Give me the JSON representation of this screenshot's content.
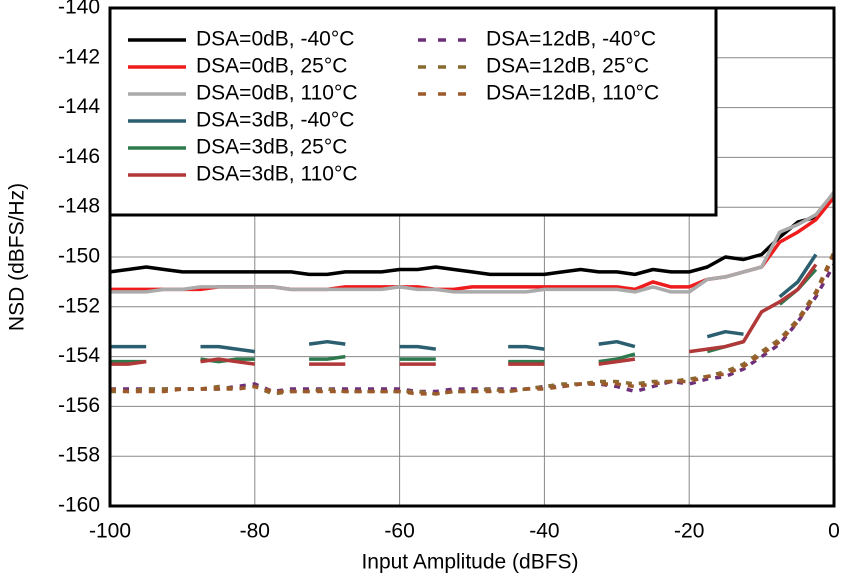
{
  "chart_data": {
    "type": "line",
    "x_label": "Input Amplitude (dBFS)",
    "y_label": "NSD (dBFS/Hz)",
    "x": [
      -100,
      -97.5,
      -95,
      -92.5,
      -90,
      -87.5,
      -85,
      -82.5,
      -80,
      -77.5,
      -75,
      -72.5,
      -70,
      -67.5,
      -65,
      -62.5,
      -60,
      -57.5,
      -55,
      -52.5,
      -50,
      -47.5,
      -45,
      -42.5,
      -40,
      -37.5,
      -35,
      -32.5,
      -30,
      -27.5,
      -25,
      -22.5,
      -20,
      -17.5,
      -15,
      -12.5,
      -10,
      -7.5,
      -5,
      -2.5,
      0
    ],
    "xlim": [
      -100,
      0
    ],
    "xticks": [
      -100,
      -80,
      -60,
      -40,
      -20,
      0
    ],
    "ylim": [
      -160,
      -140
    ],
    "yticks": [
      -160,
      -158,
      -156,
      -154,
      -152,
      -150,
      -148,
      -146,
      -144,
      -142,
      -140
    ],
    "grid": true,
    "legend": "upper left",
    "series": [
      {
        "name": "DSA=0dB, -40°C",
        "color": "#000000",
        "style": "solid",
        "values": [
          -150.6,
          -150.5,
          -150.4,
          -150.5,
          -150.6,
          -150.6,
          -150.6,
          -150.6,
          -150.6,
          -150.6,
          -150.6,
          -150.7,
          -150.7,
          -150.6,
          -150.6,
          -150.6,
          -150.5,
          -150.5,
          -150.4,
          -150.5,
          -150.6,
          -150.7,
          -150.7,
          -150.7,
          -150.7,
          -150.6,
          -150.5,
          -150.6,
          -150.6,
          -150.7,
          -150.5,
          -150.6,
          -150.6,
          -150.4,
          -150.0,
          -150.1,
          -149.9,
          -149.2,
          -148.6,
          -148.4,
          -147.4
        ]
      },
      {
        "name": "DSA=0dB, 25°C",
        "color": "#ee1c1c",
        "style": "solid",
        "values": [
          -151.3,
          -151.3,
          -151.3,
          -151.3,
          -151.3,
          -151.3,
          -151.2,
          -151.2,
          -151.2,
          -151.2,
          -151.3,
          -151.3,
          -151.3,
          -151.2,
          -151.2,
          -151.2,
          -151.2,
          -151.2,
          -151.3,
          -151.3,
          -151.2,
          -151.2,
          -151.2,
          -151.2,
          -151.2,
          -151.2,
          -151.2,
          -151.2,
          -151.2,
          -151.3,
          -151.0,
          -151.2,
          -151.2,
          -150.9,
          -150.8,
          -150.6,
          -150.4,
          -149.4,
          -149.0,
          -148.5,
          -147.6
        ]
      },
      {
        "name": "DSA=0dB, 110°C",
        "color": "#aaaaaa",
        "style": "solid",
        "values": [
          -151.4,
          -151.4,
          -151.4,
          -151.3,
          -151.3,
          -151.2,
          -151.2,
          -151.2,
          -151.2,
          -151.2,
          -151.3,
          -151.3,
          -151.3,
          -151.3,
          -151.3,
          -151.3,
          -151.2,
          -151.3,
          -151.3,
          -151.4,
          -151.4,
          -151.4,
          -151.4,
          -151.4,
          -151.3,
          -151.3,
          -151.3,
          -151.3,
          -151.3,
          -151.4,
          -151.2,
          -151.4,
          -151.4,
          -150.9,
          -150.8,
          -150.6,
          -150.4,
          -149.0,
          -148.7,
          -148.3,
          -147.4
        ]
      },
      {
        "name": "DSA=3dB, -40°C",
        "color": "#2b5f70",
        "style": "solid",
        "values": [
          -153.6,
          -153.6,
          -153.6,
          null,
          null,
          -153.6,
          -153.6,
          -153.7,
          -153.8,
          null,
          null,
          -153.5,
          -153.4,
          -153.5,
          null,
          null,
          -153.6,
          -153.6,
          -153.7,
          null,
          null,
          null,
          -153.6,
          -153.6,
          -153.7,
          null,
          null,
          -153.5,
          -153.4,
          -153.6,
          null,
          null,
          null,
          -153.2,
          -153.0,
          -153.1,
          null,
          -151.6,
          -151.0,
          -149.9,
          null
        ]
      },
      {
        "name": "DSA=3dB, 25°C",
        "color": "#2e7a4e",
        "style": "solid",
        "values": [
          -154.2,
          -154.2,
          -154.2,
          null,
          null,
          -154.1,
          -154.2,
          -154.1,
          -154.1,
          null,
          null,
          -154.1,
          -154.1,
          -154.0,
          null,
          null,
          -154.1,
          -154.1,
          -154.1,
          null,
          null,
          null,
          -154.2,
          -154.2,
          -154.2,
          null,
          null,
          -154.2,
          -154.1,
          -153.9,
          null,
          null,
          null,
          -153.8,
          -153.6,
          -153.4,
          null,
          -151.9,
          -151.3,
          -150.5,
          null
        ]
      },
      {
        "name": "DSA=3dB, 110°C",
        "color": "#b03838",
        "style": "solid",
        "values": [
          -154.3,
          -154.3,
          -154.2,
          null,
          null,
          -154.2,
          -154.1,
          -154.2,
          -154.3,
          null,
          null,
          -154.3,
          -154.3,
          -154.3,
          null,
          null,
          -154.3,
          -154.3,
          -154.3,
          null,
          null,
          null,
          -154.3,
          -154.3,
          -154.3,
          null,
          null,
          -154.3,
          -154.2,
          -154.1,
          null,
          null,
          -153.8,
          -153.7,
          -153.6,
          -153.4,
          -152.2,
          -151.8,
          -151.3,
          -150.3,
          null
        ]
      },
      {
        "name": "DSA=12dB, -40°C",
        "color": "#6d2f7c",
        "style": "dashed",
        "values": [
          -155.3,
          -155.3,
          -155.3,
          -155.3,
          -155.3,
          -155.3,
          -155.3,
          -155.2,
          -155.1,
          -155.4,
          -155.3,
          -155.3,
          -155.3,
          -155.3,
          -155.3,
          -155.3,
          -155.3,
          -155.4,
          -155.4,
          -155.3,
          -155.3,
          -155.3,
          -155.3,
          -155.3,
          -155.2,
          -155.2,
          -155.1,
          -155.1,
          -155.2,
          -155.4,
          -155.2,
          -155.0,
          -155.1,
          -154.9,
          -154.8,
          -154.5,
          -154.0,
          -153.5,
          -152.6,
          -151.6,
          -150.3
        ]
      },
      {
        "name": "DSA=12dB, 25°C",
        "color": "#8a6a30",
        "style": "dashed",
        "values": [
          -155.4,
          -155.4,
          -155.3,
          -155.3,
          -155.3,
          -155.3,
          -155.2,
          -155.3,
          -155.2,
          -155.5,
          -155.4,
          -155.4,
          -155.3,
          -155.4,
          -155.4,
          -155.4,
          -155.4,
          -155.4,
          -155.5,
          -155.4,
          -155.4,
          -155.3,
          -155.4,
          -155.3,
          -155.2,
          -155.1,
          -155.1,
          -155.0,
          -155.0,
          -155.1,
          -155.0,
          -155.0,
          -154.9,
          -154.8,
          -154.6,
          -154.3,
          -153.8,
          -153.3,
          -152.5,
          -151.4,
          -149.8
        ]
      },
      {
        "name": "DSA=12dB, 110°C",
        "color": "#9c5a2a",
        "style": "dashed",
        "values": [
          -155.3,
          -155.4,
          -155.4,
          -155.4,
          -155.3,
          -155.3,
          -155.3,
          -155.3,
          -155.2,
          -155.4,
          -155.4,
          -155.4,
          -155.4,
          -155.4,
          -155.4,
          -155.4,
          -155.4,
          -155.5,
          -155.5,
          -155.4,
          -155.4,
          -155.4,
          -155.4,
          -155.3,
          -155.3,
          -155.2,
          -155.1,
          -155.1,
          -155.1,
          -155.2,
          -155.1,
          -155.0,
          -155.0,
          -154.8,
          -154.7,
          -154.4,
          -153.9,
          -153.4,
          -152.6,
          -151.5,
          -149.9
        ]
      }
    ]
  }
}
